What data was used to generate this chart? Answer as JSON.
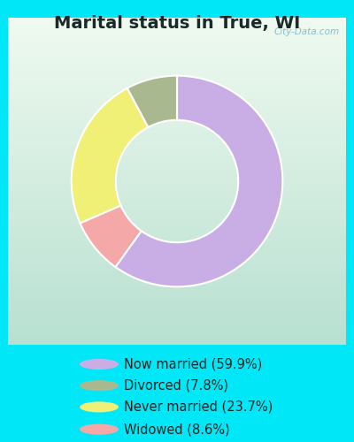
{
  "title": "Marital status in True, WI",
  "title_fontsize": 14,
  "title_fontweight": "bold",
  "slices": [
    {
      "label": "Now married (59.9%)",
      "value": 59.9,
      "color": "#c9aee5"
    },
    {
      "label": "Divorced (7.8%)",
      "value": 7.8,
      "color": "#aab890"
    },
    {
      "label": "Never married (23.7%)",
      "value": 23.7,
      "color": "#f0f077"
    },
    {
      "label": "Widowed (8.6%)",
      "value": 8.6,
      "color": "#f5a8a8"
    }
  ],
  "background_outer": "#00e8f8",
  "background_chart_top_right": "#e8f5e9",
  "background_chart_bottom_left": "#b2dfdb",
  "watermark": "City-Data.com",
  "start_angle": 90,
  "legend_fontsize": 10.5,
  "legend_circle_colors": [
    "#c9aee5",
    "#aab890",
    "#f0f077",
    "#f5a8a8"
  ]
}
